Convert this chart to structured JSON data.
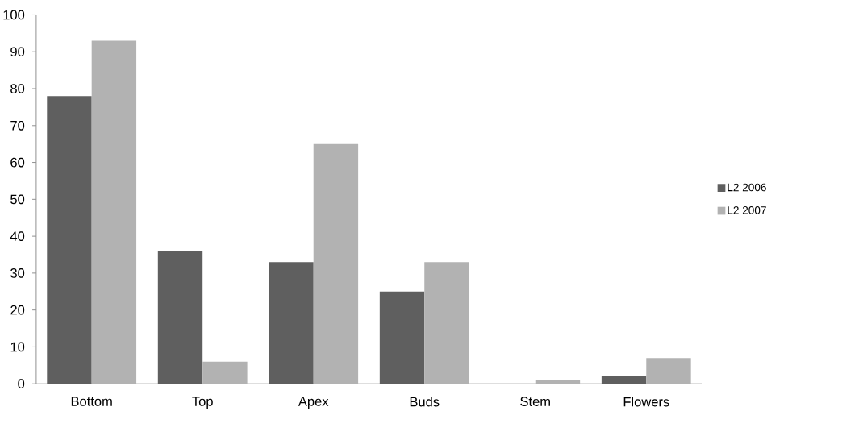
{
  "chart_data": {
    "type": "bar",
    "categories": [
      "Bottom",
      "Top",
      "Apex",
      "Buds",
      "Stem",
      "Flowers"
    ],
    "series": [
      {
        "name": "L2 2006",
        "color": "#5f5f5f",
        "values": [
          78,
          36,
          33,
          25,
          0,
          2
        ]
      },
      {
        "name": "L2 2007",
        "color": "#b2b2b2",
        "values": [
          93,
          6,
          65,
          33,
          1,
          7
        ]
      }
    ],
    "ylim": [
      0,
      100
    ],
    "yticks": [
      0,
      10,
      20,
      30,
      40,
      50,
      60,
      70,
      80,
      90,
      100
    ],
    "grid": false,
    "legend": "right"
  }
}
